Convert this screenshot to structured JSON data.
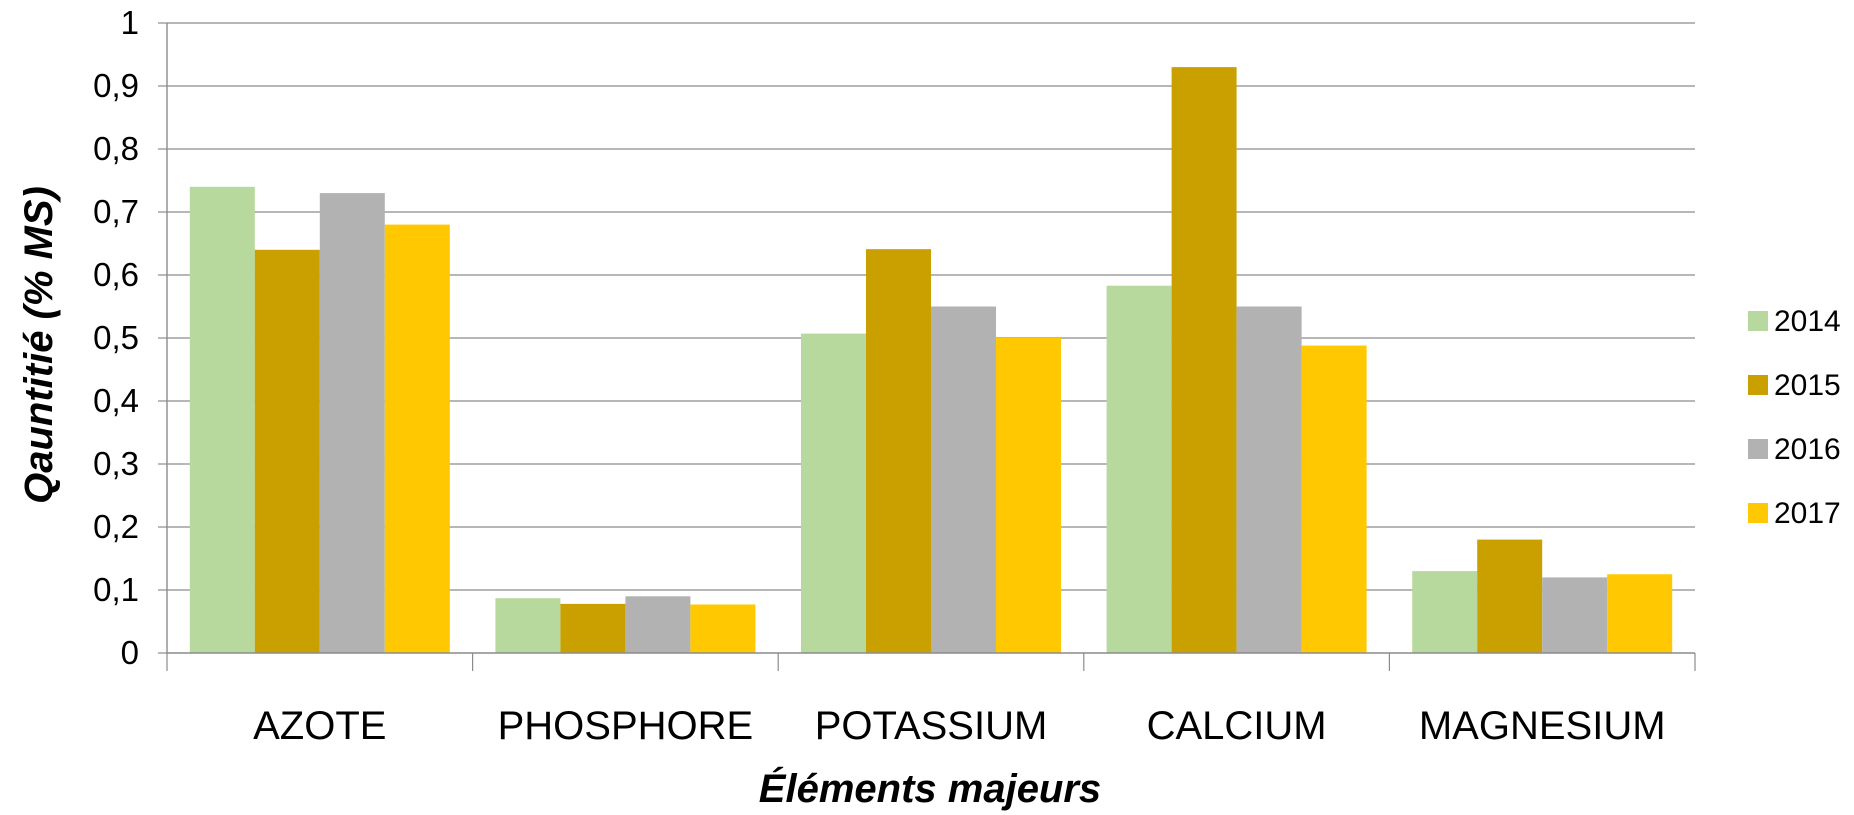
{
  "chart_data": {
    "type": "bar",
    "xlabel": "Éléments majeurs",
    "ylabel": "Qauntitié (% MS)",
    "categories": [
      "AZOTE",
      "PHOSPHORE",
      "POTASSIUM",
      "CALCIUM",
      "MAGNESIUM"
    ],
    "series": [
      {
        "name": "2014",
        "color": "#b8d99d",
        "values": [
          0.74,
          0.087,
          0.507,
          0.583,
          0.13
        ]
      },
      {
        "name": "2015",
        "color": "#c9a000",
        "values": [
          0.64,
          0.078,
          0.641,
          0.93,
          0.18
        ]
      },
      {
        "name": "2016",
        "color": "#b2b2b2",
        "values": [
          0.73,
          0.09,
          0.55,
          0.55,
          0.12
        ]
      },
      {
        "name": "2017",
        "color": "#ffc800",
        "values": [
          0.68,
          0.077,
          0.5,
          0.488,
          0.125
        ]
      }
    ],
    "yticks": [
      "0",
      "0,1",
      "0,2",
      "0,3",
      "0,4",
      "0,5",
      "0,6",
      "0,7",
      "0,8",
      "0,9",
      "1"
    ],
    "ylim": [
      0,
      1
    ],
    "grid": true,
    "legend_position": "right"
  }
}
